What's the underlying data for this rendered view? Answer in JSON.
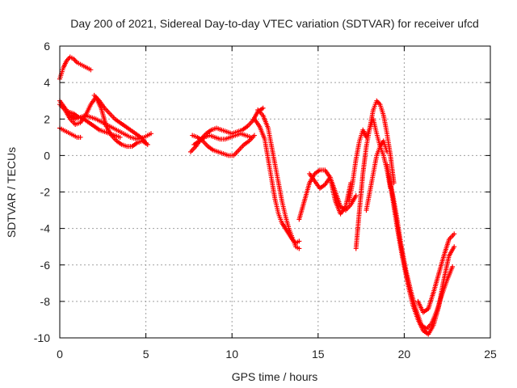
{
  "chart_data": {
    "type": "scatter",
    "title": "Day 200 of 2021, Sidereal Day-to-day VTEC variation (SDTVAR) for receiver ufcd",
    "xlabel": "GPS time / hours",
    "ylabel": "SDTVAR / TECUs",
    "xlim": [
      0,
      25
    ],
    "ylim": [
      -10,
      6
    ],
    "x_ticks": [
      "0",
      "5",
      "10",
      "15",
      "20",
      "25"
    ],
    "y_ticks": [
      "-10",
      "-8",
      "-6",
      "-4",
      "-2",
      "0",
      "2",
      "4",
      "6"
    ],
    "grid": true,
    "marker": "plus",
    "color": "#ff0000",
    "series": [
      {
        "x": [
          0.0,
          0.2,
          0.4,
          0.6,
          0.8,
          1.0,
          1.2,
          1.4,
          1.6,
          1.8
        ],
        "y": [
          4.2,
          4.8,
          5.2,
          5.4,
          5.3,
          5.1,
          5.0,
          4.9,
          4.8,
          4.7
        ]
      },
      {
        "x": [
          0.0,
          0.3,
          0.6,
          0.9,
          1.2,
          1.5,
          1.8,
          2.1,
          2.5,
          2.9,
          3.3,
          3.7,
          4.1,
          4.5,
          4.9,
          5.3
        ],
        "y": [
          3.0,
          2.6,
          2.2,
          2.0,
          2.1,
          2.2,
          2.1,
          2.0,
          1.8,
          1.6,
          1.4,
          1.2,
          1.0,
          0.9,
          1.0,
          1.2
        ]
      },
      {
        "x": [
          0.0,
          0.3,
          0.6,
          0.9,
          1.2,
          1.5,
          1.8,
          2.1,
          2.4,
          2.7,
          3.0,
          3.3,
          3.6,
          3.9,
          4.2,
          4.5,
          4.8,
          5.1
        ],
        "y": [
          2.8,
          2.5,
          2.0,
          1.7,
          1.8,
          2.2,
          2.8,
          3.2,
          2.6,
          1.6,
          1.1,
          0.8,
          0.6,
          0.5,
          0.5,
          0.7,
          0.8,
          0.6
        ]
      },
      {
        "x": [
          0.0,
          0.2,
          0.4,
          0.6,
          0.8,
          1.0,
          1.2
        ],
        "y": [
          1.5,
          1.4,
          1.3,
          1.2,
          1.1,
          1.0,
          1.0
        ]
      },
      {
        "x": [
          2.0,
          2.3,
          2.6,
          2.9,
          3.2,
          3.5,
          3.8,
          4.1,
          4.4,
          4.7,
          5.0
        ],
        "y": [
          3.3,
          3.0,
          2.6,
          2.3,
          2.0,
          1.8,
          1.6,
          1.4,
          1.2,
          1.0,
          0.7
        ]
      },
      {
        "x": [
          0.5,
          0.8,
          1.1,
          1.4,
          1.7,
          2.0,
          2.3,
          2.6,
          2.9,
          3.2,
          3.5
        ],
        "y": [
          2.4,
          2.3,
          2.1,
          2.0,
          1.8,
          1.6,
          1.4,
          1.3,
          1.2,
          1.1,
          1.0
        ]
      },
      {
        "x": [
          7.6,
          7.9,
          8.2,
          8.5,
          8.8,
          9.1,
          9.4,
          9.7,
          10.0,
          10.3,
          10.6,
          10.9,
          11.2,
          11.5,
          11.8
        ],
        "y": [
          0.2,
          0.5,
          0.9,
          1.2,
          1.4,
          1.5,
          1.4,
          1.3,
          1.2,
          1.3,
          1.4,
          1.6,
          1.9,
          2.4,
          2.6
        ]
      },
      {
        "x": [
          7.7,
          8.0,
          8.3,
          8.6,
          8.9,
          9.2,
          9.5,
          9.8,
          10.1,
          10.4,
          10.7,
          11.0,
          11.3
        ],
        "y": [
          1.1,
          1.0,
          0.8,
          0.5,
          0.3,
          0.2,
          0.1,
          0.0,
          0.0,
          0.3,
          0.6,
          0.8,
          1.1
        ]
      },
      {
        "x": [
          7.8,
          8.1,
          8.4,
          8.7,
          9.0,
          9.3,
          9.6,
          9.9,
          10.2,
          10.5,
          10.8,
          11.1
        ],
        "y": [
          0.6,
          0.8,
          1.0,
          1.1,
          1.0,
          0.9,
          0.9,
          1.0,
          1.1,
          1.2,
          1.1,
          1.0
        ]
      },
      {
        "x": [
          11.5,
          11.8,
          12.1,
          12.3,
          12.5,
          12.7,
          12.9,
          13.1,
          13.3,
          13.5,
          13.7,
          13.9
        ],
        "y": [
          2.5,
          2.2,
          1.5,
          0.5,
          -0.5,
          -1.5,
          -2.5,
          -3.3,
          -4.0,
          -4.5,
          -5.0,
          -5.1
        ]
      },
      {
        "x": [
          11.3,
          11.6,
          11.9,
          12.1,
          12.3,
          12.5,
          12.7,
          12.9,
          13.1,
          13.3,
          13.5,
          13.7,
          13.9
        ],
        "y": [
          2.0,
          1.6,
          0.9,
          -0.2,
          -1.3,
          -2.4,
          -3.2,
          -3.7,
          -4.0,
          -4.3,
          -4.6,
          -4.8,
          -4.7
        ]
      },
      {
        "x": [
          13.9,
          14.2,
          14.5,
          14.8,
          15.1,
          15.4,
          15.7,
          16.0,
          16.3,
          16.6,
          16.9,
          17.2
        ],
        "y": [
          -3.5,
          -2.5,
          -1.5,
          -1.0,
          -0.8,
          -0.8,
          -1.2,
          -2.0,
          -2.8,
          -3.0,
          -2.7,
          -2.2
        ]
      },
      {
        "x": [
          14.5,
          14.8,
          15.1,
          15.4,
          15.7,
          16.0,
          16.3,
          16.6,
          16.9
        ],
        "y": [
          -1.0,
          -1.4,
          -1.8,
          -1.6,
          -1.2,
          -2.5,
          -3.2,
          -2.8,
          -1.5
        ]
      },
      {
        "x": [
          16.8,
          17.0,
          17.2,
          17.4,
          17.6,
          17.8,
          18.0,
          18.2,
          18.4,
          18.6,
          18.8,
          19.0,
          19.2,
          19.4
        ],
        "y": [
          -2.5,
          -1.5,
          -0.2,
          0.8,
          1.4,
          1.0,
          1.5,
          2.5,
          3.0,
          2.8,
          2.2,
          1.2,
          0.0,
          -1.5
        ]
      },
      {
        "x": [
          17.2,
          17.4,
          17.6,
          17.8,
          18.0,
          18.2,
          18.4,
          18.6,
          18.8,
          19.0
        ],
        "y": [
          -5.1,
          -3.0,
          -1.0,
          0.5,
          1.5,
          2.0,
          1.2,
          0.5,
          0.8,
          0.2
        ]
      },
      {
        "x": [
          17.8,
          18.0,
          18.2,
          18.4,
          18.6,
          18.8,
          19.0,
          19.2
        ],
        "y": [
          -3.0,
          -2.0,
          -1.0,
          0.0,
          0.5,
          0.0,
          -0.8,
          -1.8
        ]
      },
      {
        "x": [
          19.2,
          19.5,
          19.8,
          20.1,
          20.4,
          20.7,
          21.0,
          21.3,
          21.6,
          21.9,
          22.2,
          22.5,
          22.8
        ],
        "y": [
          -1.5,
          -3.0,
          -4.8,
          -6.3,
          -7.5,
          -8.5,
          -9.3,
          -9.5,
          -9.2,
          -8.5,
          -7.6,
          -6.8,
          -6.1
        ]
      },
      {
        "x": [
          19.0,
          19.3,
          19.6,
          19.9,
          20.2,
          20.5,
          20.8,
          21.1,
          21.4,
          21.7,
          22.0,
          22.3,
          22.6,
          22.9
        ],
        "y": [
          -0.5,
          -2.2,
          -4.0,
          -5.6,
          -7.0,
          -8.2,
          -9.0,
          -9.6,
          -9.8,
          -9.3,
          -8.3,
          -6.8,
          -5.5,
          -5.0
        ]
      },
      {
        "x": [
          20.8,
          21.1,
          21.4,
          21.7,
          22.0,
          22.3,
          22.6,
          22.9
        ],
        "y": [
          -8.0,
          -8.6,
          -8.4,
          -7.5,
          -6.5,
          -5.5,
          -4.6,
          -4.3
        ]
      }
    ]
  }
}
